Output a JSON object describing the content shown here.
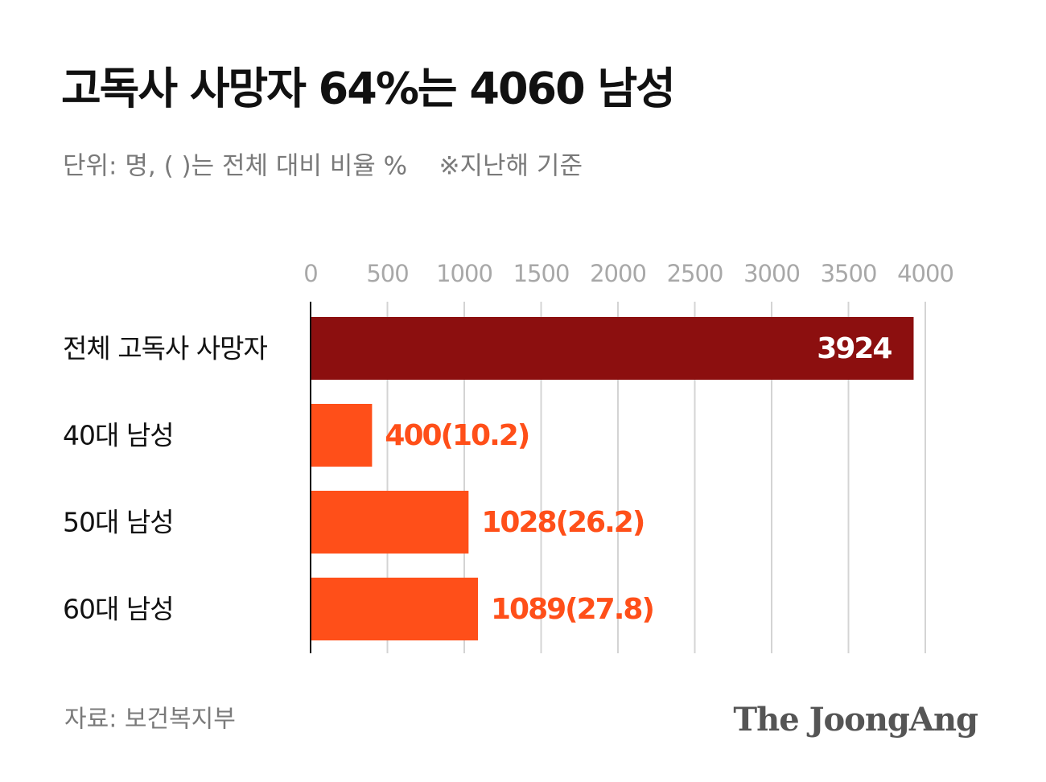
{
  "chart_data": {
    "type": "bar",
    "orientation": "horizontal",
    "title": "고독사 사망자 64%는 4060 남성",
    "subtitle": "단위: 명, ( )는 전체 대비 비율 %    ※지난해 기준",
    "categories": [
      "전체 고독사 사망자",
      "40대 남성",
      "50대 남성",
      "60대 남성"
    ],
    "values": [
      3924,
      400,
      1028,
      1089
    ],
    "value_labels": [
      "3924",
      "400(10.2)",
      "1028(26.2)",
      "1089(27.8)"
    ],
    "colors": [
      "#8c0f0f",
      "#ff4f19",
      "#ff4f19",
      "#ff4f19"
    ],
    "xlim": [
      0,
      4000
    ],
    "xticks": [
      0,
      500,
      1000,
      1500,
      2000,
      2500,
      3000,
      3500,
      4000
    ],
    "grid": true,
    "source": "자료: 보건복지부",
    "brand": "The JoongAng"
  }
}
